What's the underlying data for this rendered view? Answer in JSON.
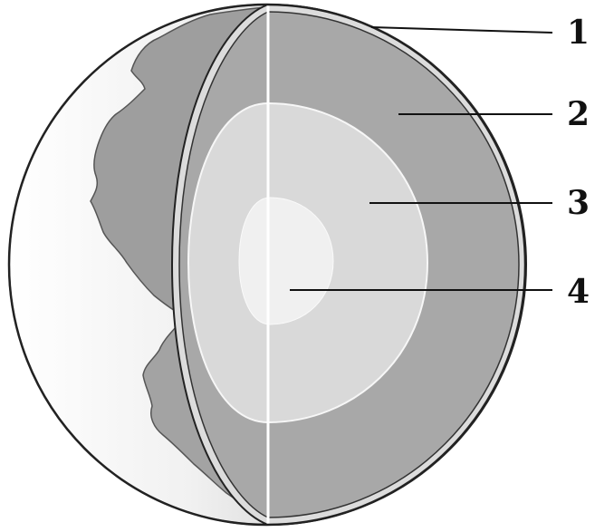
{
  "colors": {
    "background": "#ffffff",
    "outline": "#222222",
    "ocean_light": "#f2f2f2",
    "ocean_shade": "#9a9a9a",
    "continent": "#9e9e9e",
    "crust": "#dcdcdc",
    "mantle": "#a8a8a8",
    "outer_core": "#d9d9d9",
    "inner_core": "#f0f0f0",
    "cut_line": "#ffffff"
  },
  "labels": [
    {
      "id": "layer-1",
      "text": "1"
    },
    {
      "id": "layer-2",
      "text": "2"
    },
    {
      "id": "layer-3",
      "text": "3"
    },
    {
      "id": "layer-4",
      "text": "4"
    }
  ]
}
